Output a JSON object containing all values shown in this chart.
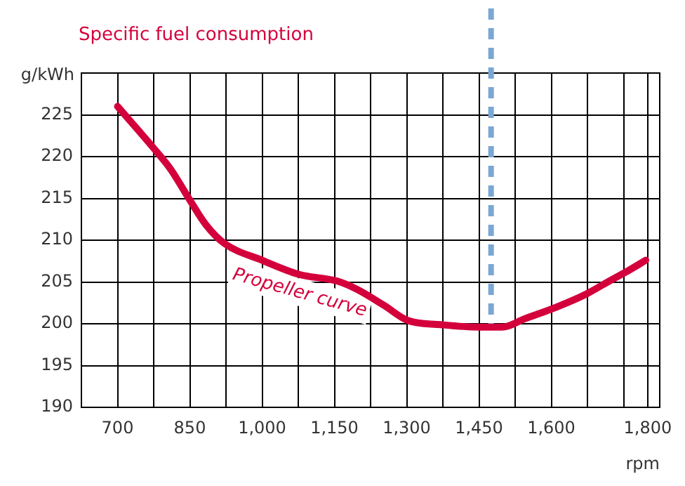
{
  "chart_data": {
    "type": "line",
    "title": "Specific fuel consumption",
    "xlabel": "rpm",
    "ylabel": "g/kWh",
    "series": [
      {
        "name": "Propeller curve",
        "color": "#d4003c",
        "x": [
          700,
          775,
          810,
          850,
          884,
          922,
          1000,
          1077,
          1156,
          1194,
          1253,
          1302,
          1370,
          1449,
          1498,
          1545,
          1615,
          1674,
          1720,
          1761,
          1796
        ],
        "values": [
          226,
          221,
          218.5,
          214.8,
          211.8,
          209.6,
          207.6,
          205.9,
          205.1,
          204.2,
          202.2,
          200.4,
          199.9,
          199.6,
          199.6,
          200.6,
          202.1,
          203.6,
          205.1,
          206.4,
          207.6
        ]
      }
    ],
    "xlim": [
      625,
      1825
    ],
    "xticks": [
      700,
      {
        "value": 775,
        "label": null
      },
      {
        "value": 850,
        "label": "850"
      },
      {
        "value": 925,
        "label": null
      },
      {
        "value": 1000,
        "label": "1,000"
      },
      {
        "value": 1075,
        "label": null
      },
      {
        "value": 1150,
        "label": "1,150"
      },
      {
        "value": 1225,
        "label": null
      },
      {
        "value": 1300,
        "label": "1,300"
      },
      {
        "value": 1375,
        "label": null
      },
      {
        "value": 1450,
        "label": "1,450"
      },
      {
        "value": 1525,
        "label": null
      },
      {
        "value": 1600,
        "label": "1,600"
      },
      {
        "value": 1675,
        "label": null
      },
      {
        "value": 1750,
        "label": null
      },
      {
        "value": 1800,
        "label": "1,800"
      }
    ],
    "ylim": [
      190,
      230
    ],
    "yticks": [
      190,
      195,
      200,
      205,
      210,
      215,
      220,
      225
    ],
    "ref_lines": [
      {
        "axis": "x",
        "value": 1475,
        "color": "#7ba7d4",
        "line_style": "dashed"
      }
    ],
    "grid": true,
    "legend": false,
    "marker": "none",
    "line_style": "solid"
  }
}
